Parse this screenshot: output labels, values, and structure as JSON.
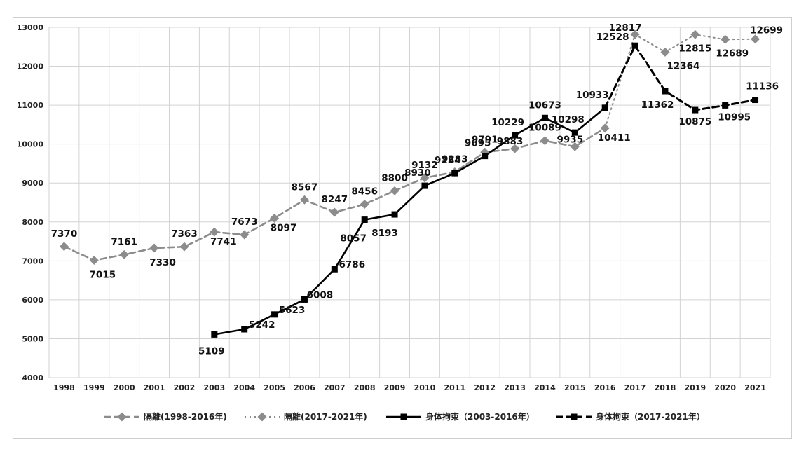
{
  "chart_data": {
    "type": "line",
    "title": "",
    "xlabel": "",
    "ylabel": "",
    "categories": [
      "1998",
      "1999",
      "2000",
      "2001",
      "2002",
      "2003",
      "2004",
      "2005",
      "2006",
      "2007",
      "2008",
      "2009",
      "2010",
      "2011",
      "2012",
      "2013",
      "2014",
      "2015",
      "2016",
      "2017",
      "2018",
      "2019",
      "2020",
      "2021"
    ],
    "ylim": [
      4000,
      13000
    ],
    "yticks": [
      "4000",
      "5000",
      "6000",
      "7000",
      "8000",
      "9000",
      "10000",
      "11000",
      "12000",
      "13000"
    ],
    "grid": true,
    "legend_position": "bottom",
    "series": [
      {
        "name": "隔離(1998-2016年)",
        "style": "dashed",
        "marker": "diamond",
        "color": "#8c8c8c",
        "x": [
          "1998",
          "1999",
          "2000",
          "2001",
          "2002",
          "2003",
          "2004",
          "2005",
          "2006",
          "2007",
          "2008",
          "2009",
          "2010",
          "2011",
          "2012",
          "2013",
          "2014",
          "2015",
          "2016"
        ],
        "values": [
          7370,
          7015,
          7161,
          7330,
          7363,
          7741,
          7673,
          8097,
          8567,
          8247,
          8456,
          8800,
          9132,
          9283,
          9791,
          9883,
          10089,
          9935,
          10411
        ],
        "labels": [
          "7370",
          "7015",
          "7161",
          "7330",
          "7363",
          "7741",
          "7673",
          "8097",
          "8567",
          "8247",
          "8456",
          "8800",
          "9132",
          "9283",
          "9791",
          "9883",
          "10089",
          "9935",
          "10411"
        ]
      },
      {
        "name": "隔離(2017-2021年)",
        "style": "dotted",
        "marker": "diamond",
        "color": "#8c8c8c",
        "x": [
          "2016",
          "2017",
          "2018",
          "2019",
          "2020",
          "2021"
        ],
        "values": [
          10411,
          12817,
          12364,
          12815,
          12689,
          12699
        ],
        "labels": [
          "12817",
          "12364",
          "12815",
          "12689",
          "12699"
        ]
      },
      {
        "name": "身体拘束（2003-2016年）",
        "style": "solid",
        "marker": "square",
        "color": "#000000",
        "x": [
          "2003",
          "2004",
          "2005",
          "2006",
          "2007",
          "2008",
          "2009",
          "2010",
          "2011",
          "2012",
          "2013",
          "2014",
          "2015",
          "2016"
        ],
        "values": [
          5109,
          5242,
          5623,
          6008,
          6786,
          8057,
          8193,
          8930,
          9254,
          9695,
          10229,
          10673,
          10298,
          10933
        ],
        "labels": [
          "5109",
          "5242",
          "5623",
          "6008",
          "6786",
          "8057",
          "8193",
          "8930",
          "9254",
          "9695",
          "10229",
          "10673",
          "10298",
          "10933"
        ]
      },
      {
        "name": "身体拘束（2017-2021年）",
        "style": "dashed",
        "marker": "square",
        "color": "#000000",
        "x": [
          "2016",
          "2017",
          "2018",
          "2019",
          "2020",
          "2021"
        ],
        "values": [
          10933,
          12528,
          11362,
          10875,
          10995,
          11136
        ],
        "labels": [
          "12528",
          "11362",
          "10875",
          "10995",
          "11136"
        ]
      }
    ]
  }
}
